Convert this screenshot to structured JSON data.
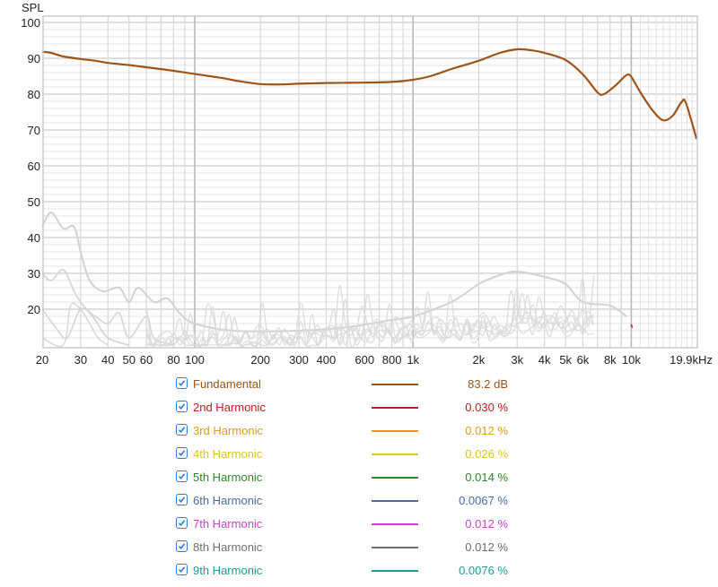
{
  "chart_data": {
    "type": "line",
    "title": "",
    "ylabel": "SPL",
    "xlabel": "",
    "x_scale": "log",
    "xlim": [
      20,
      19900
    ],
    "ylim": [
      10,
      100
    ],
    "grid": true,
    "y_ticks": [
      20,
      30,
      40,
      50,
      60,
      70,
      80,
      90,
      100
    ],
    "x_ticks": [
      {
        "value": 20,
        "label": "20"
      },
      {
        "value": 30,
        "label": "30"
      },
      {
        "value": 40,
        "label": "40"
      },
      {
        "value": 50,
        "label": "50"
      },
      {
        "value": 60,
        "label": "60"
      },
      {
        "value": 80,
        "label": "80"
      },
      {
        "value": 100,
        "label": "100"
      },
      {
        "value": 200,
        "label": "200"
      },
      {
        "value": 300,
        "label": "300"
      },
      {
        "value": 400,
        "label": "400"
      },
      {
        "value": 600,
        "label": "600"
      },
      {
        "value": 800,
        "label": "800"
      },
      {
        "value": 1000,
        "label": "1k"
      },
      {
        "value": 2000,
        "label": "2k"
      },
      {
        "value": 3000,
        "label": "3k"
      },
      {
        "value": 4000,
        "label": "4k"
      },
      {
        "value": 5000,
        "label": "5k"
      },
      {
        "value": 6000,
        "label": "6k"
      },
      {
        "value": 8000,
        "label": "8k"
      },
      {
        "value": 10000,
        "label": "10k"
      },
      {
        "value": 19900,
        "label": "19.9kHz"
      }
    ],
    "series": [
      {
        "name": "Fundamental",
        "color": "#9c5418",
        "points": [
          [
            20,
            91.8
          ],
          [
            22,
            91.5
          ],
          [
            25,
            90.5
          ],
          [
            30,
            89.8
          ],
          [
            35,
            89.3
          ],
          [
            40,
            88.7
          ],
          [
            50,
            88.1
          ],
          [
            60,
            87.5
          ],
          [
            80,
            86.5
          ],
          [
            100,
            85.6
          ],
          [
            130,
            84.6
          ],
          [
            160,
            83.6
          ],
          [
            200,
            82.8
          ],
          [
            250,
            82.7
          ],
          [
            300,
            82.9
          ],
          [
            400,
            83.1
          ],
          [
            600,
            83.2
          ],
          [
            800,
            83.4
          ],
          [
            1000,
            84.0
          ],
          [
            1200,
            85.0
          ],
          [
            1500,
            87.0
          ],
          [
            2000,
            89.3
          ],
          [
            2500,
            91.5
          ],
          [
            3000,
            92.5
          ],
          [
            3500,
            92.2
          ],
          [
            4000,
            91.5
          ],
          [
            5000,
            89.5
          ],
          [
            6000,
            85.5
          ],
          [
            7000,
            80.5
          ],
          [
            7500,
            80.0
          ],
          [
            8500,
            82.5
          ],
          [
            9500,
            85.3
          ],
          [
            10000,
            84.8
          ],
          [
            11000,
            80.5
          ],
          [
            12500,
            75.5
          ],
          [
            14000,
            72.7
          ],
          [
            15500,
            74.0
          ],
          [
            17000,
            77.8
          ],
          [
            17800,
            77.5
          ],
          [
            19900,
            67.5
          ]
        ]
      },
      {
        "name": "Harmonics (gray)",
        "color": "#cccccc",
        "points_upper_envelope": [
          [
            20,
            43
          ],
          [
            22,
            47
          ],
          [
            25,
            42.5
          ],
          [
            28,
            43
          ],
          [
            30,
            36
          ],
          [
            33,
            28
          ],
          [
            38,
            25
          ],
          [
            45,
            26
          ],
          [
            50,
            22
          ],
          [
            55,
            26
          ],
          [
            65,
            22
          ],
          [
            75,
            23
          ],
          [
            85,
            19
          ],
          [
            100,
            16
          ],
          [
            150,
            14
          ],
          [
            300,
            14
          ],
          [
            500,
            15
          ],
          [
            800,
            17
          ],
          [
            1000,
            18
          ],
          [
            1500,
            22
          ],
          [
            2000,
            27
          ],
          [
            2500,
            29.5
          ],
          [
            3000,
            30.5
          ],
          [
            4000,
            29
          ],
          [
            5000,
            27
          ],
          [
            6000,
            22
          ],
          [
            8000,
            21
          ],
          [
            9500,
            18
          ]
        ]
      }
    ]
  },
  "legend": [
    {
      "label": "Fundamental",
      "value": "83.2 dB",
      "color": "#9c5418",
      "checked": true
    },
    {
      "label": "2nd Harmonic",
      "value": "0.030 %",
      "color": "#c11d1d",
      "checked": true
    },
    {
      "label": "3rd Harmonic",
      "value": "0.012 %",
      "color": "#e39b1b",
      "checked": true
    },
    {
      "label": "4th Harmonic",
      "value": "0.026 %",
      "color": "#e3c51c",
      "checked": true
    },
    {
      "label": "5th Harmonic",
      "value": "0.014 %",
      "color": "#2e8a2a",
      "checked": true
    },
    {
      "label": "6th Harmonic",
      "value": "0.0067 %",
      "color": "#4a6aa4",
      "checked": true
    },
    {
      "label": "7th Harmonic",
      "value": "0.012 %",
      "color": "#cc44cc",
      "checked": true
    },
    {
      "label": "8th Harmonic",
      "value": "0.012 %",
      "color": "#6e6e6e",
      "checked": true
    },
    {
      "label": "9th Harmonic",
      "value": "0.0076 %",
      "color": "#1f9a96",
      "checked": true
    }
  ]
}
